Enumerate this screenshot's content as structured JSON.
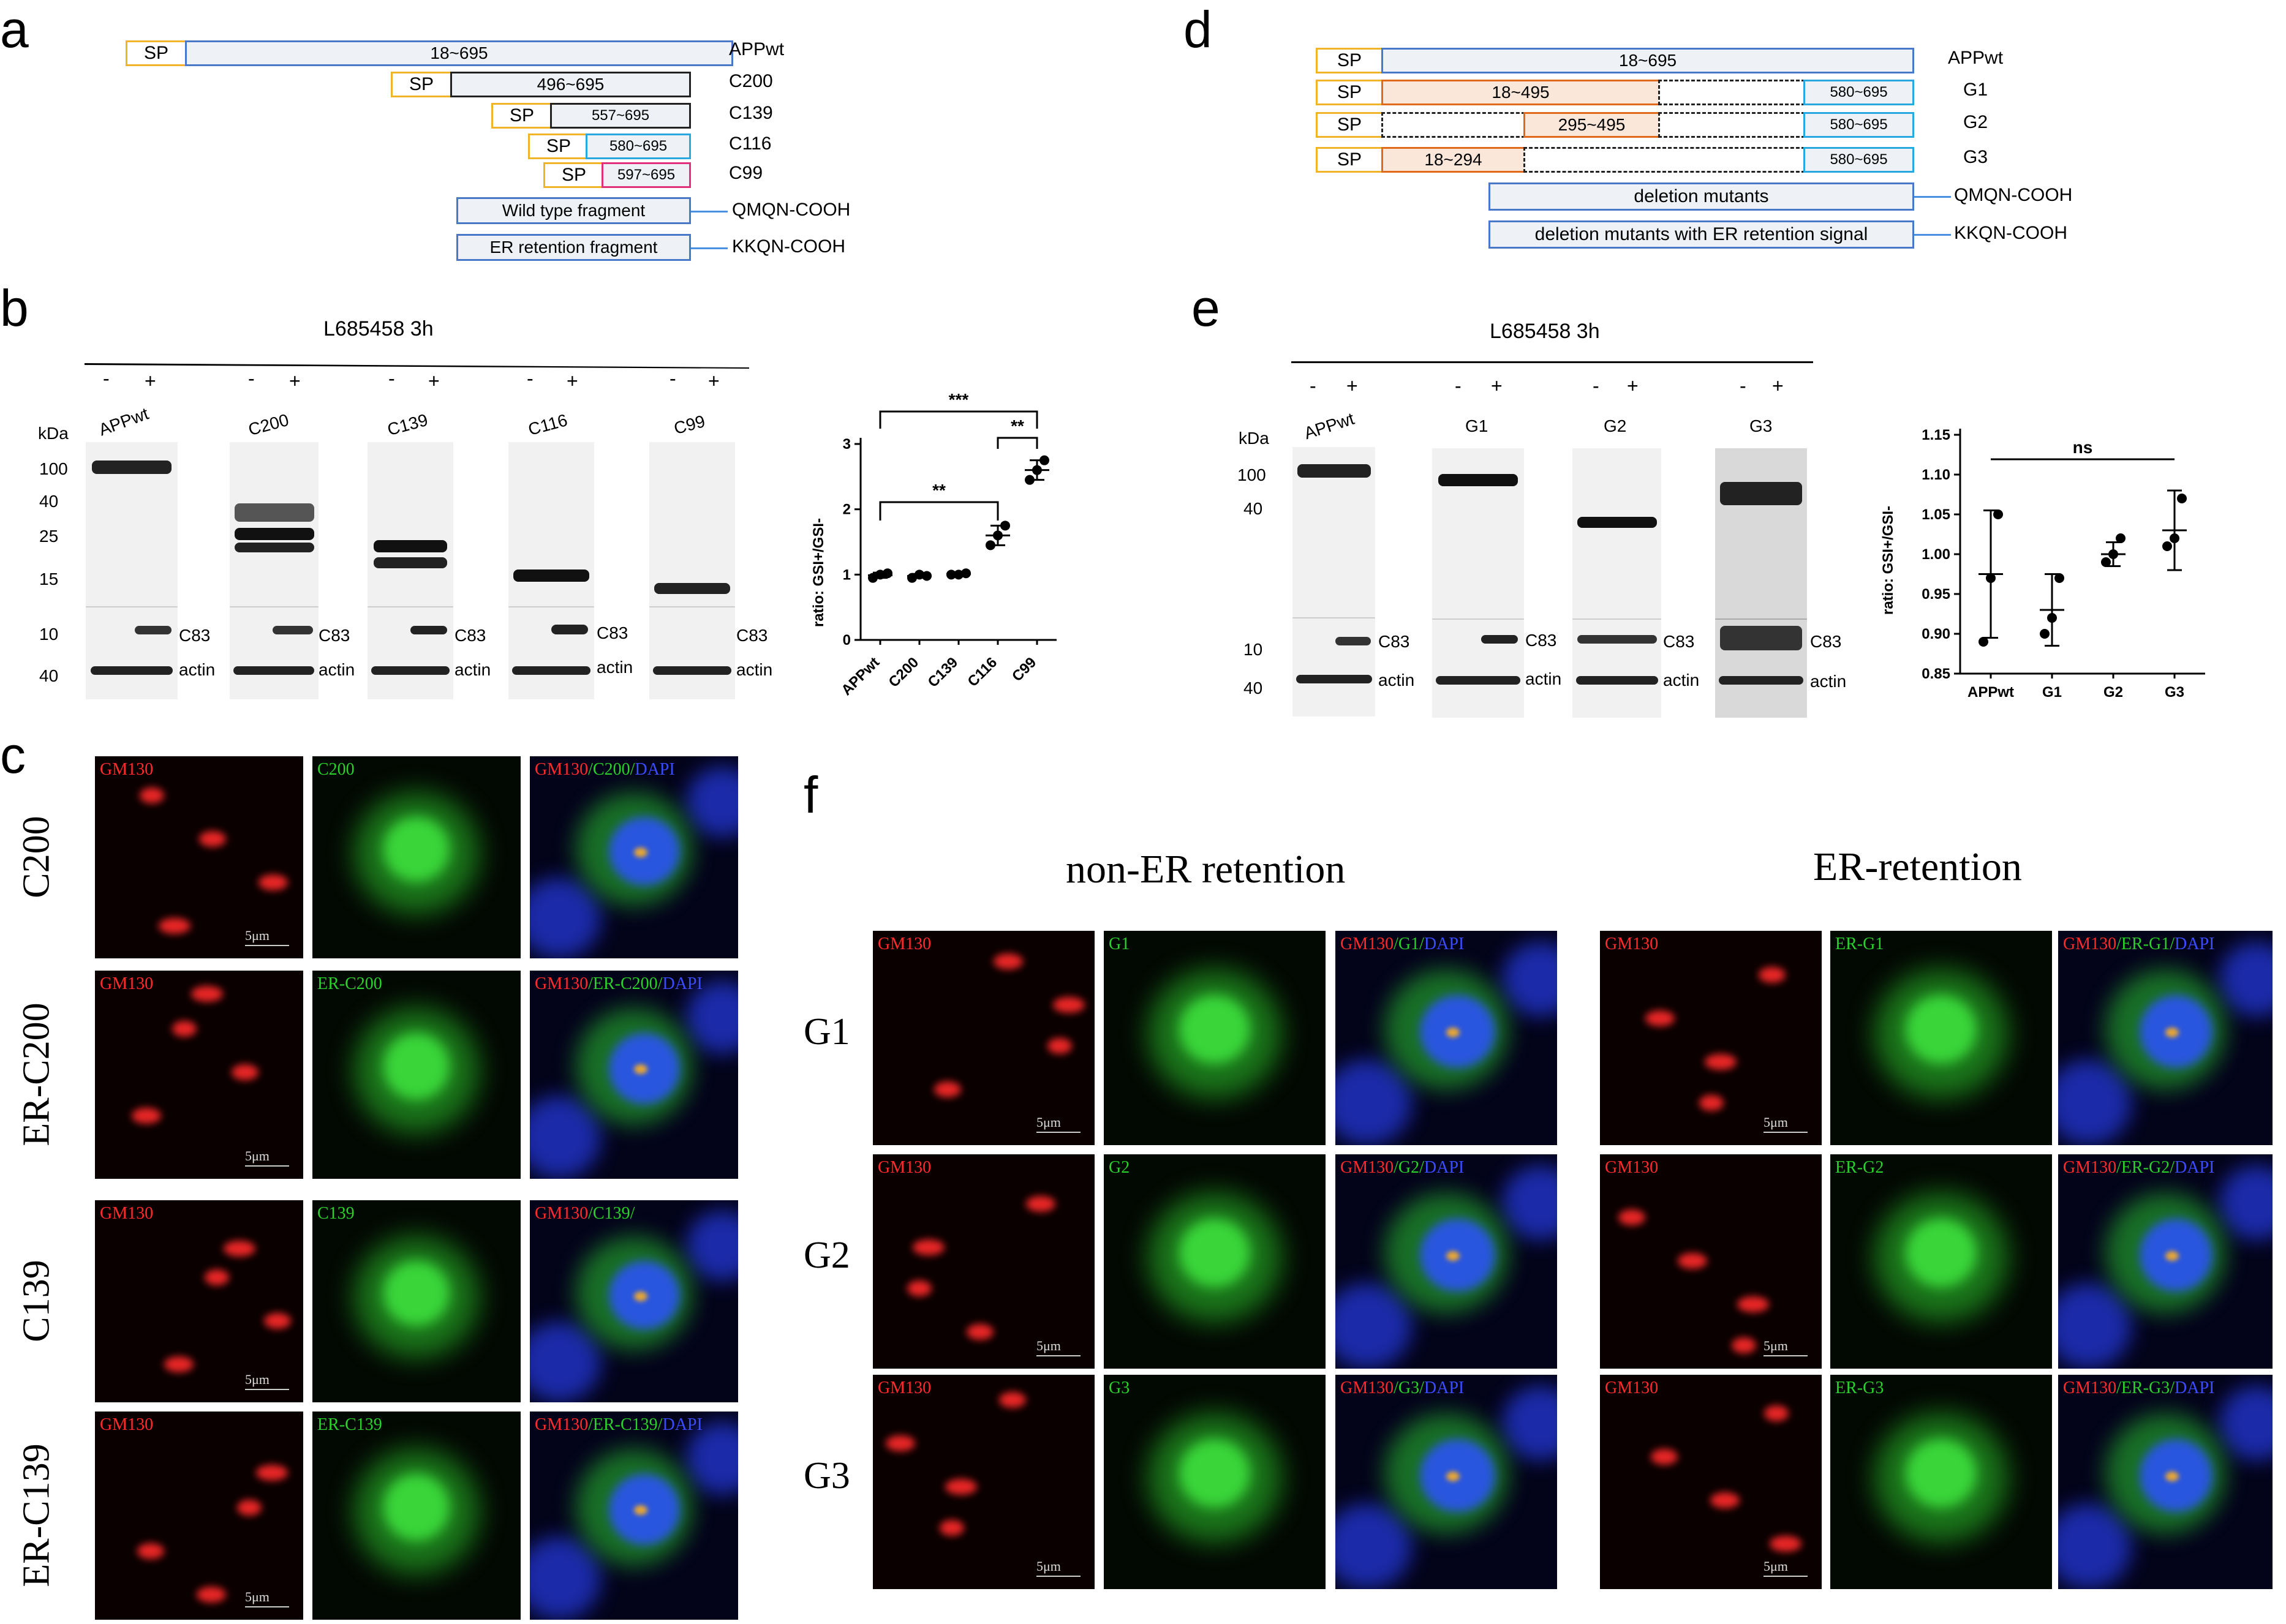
{
  "panel_letters": [
    "a",
    "b",
    "c",
    "d",
    "e",
    "f"
  ],
  "panel_a": {
    "sp": "SP",
    "constructs": [
      {
        "name": "APPwt",
        "range": "18~695"
      },
      {
        "name": "C200",
        "range": "496~695"
      },
      {
        "name": "C139",
        "range": "557~695"
      },
      {
        "name": "C116",
        "range": "580~695"
      },
      {
        "name": "C99",
        "range": "597~695"
      }
    ],
    "wt_fragment": "Wild type fragment",
    "er_fragment": "ER retention fragment",
    "wt_tail": "QMQN-COOH",
    "er_tail": "KKQN-COOH"
  },
  "panel_b": {
    "treatment": "L685458  3h",
    "kda": "kDa",
    "groups": [
      "APPwt",
      "C200",
      "C139",
      "C116",
      "C99"
    ],
    "minus": "-",
    "plus": "+",
    "markers": [
      "100",
      "40",
      "25",
      "15",
      "10",
      "40"
    ],
    "c83": "C83",
    "actin": "actin"
  },
  "panel_b_chart": {
    "chart_data": {
      "type": "scatter",
      "categories": [
        "APPwt",
        "C200",
        "C139",
        "C116",
        "C99"
      ],
      "points": [
        [
          0.95,
          1.0,
          1.02
        ],
        [
          0.95,
          1.0,
          0.98
        ],
        [
          1.0,
          1.0,
          1.02
        ],
        [
          1.45,
          1.6,
          1.75
        ],
        [
          2.45,
          2.6,
          2.75
        ]
      ],
      "means": [
        0.99,
        0.98,
        1.01,
        1.6,
        2.6
      ],
      "sd": [
        0.04,
        0.03,
        0.02,
        0.15,
        0.15
      ],
      "ylabel": "ratio: GSI+/GSI-",
      "ylim": [
        0,
        3
      ],
      "yticks": [
        "0",
        "1",
        "2",
        "3"
      ],
      "annotations": [
        {
          "from": "APPwt",
          "to": "C99",
          "text": "***"
        },
        {
          "from": "C116",
          "to": "C99",
          "text": "**"
        },
        {
          "from": "APPwt",
          "to": "C116",
          "text": "**"
        }
      ]
    }
  },
  "panel_c": {
    "rows": [
      {
        "label": "C200",
        "tiles": [
          "GM130",
          "C200"
        ],
        "merge": [
          "GM130",
          "/C200/",
          "DAPI"
        ]
      },
      {
        "label": "ER-C200",
        "tiles": [
          "GM130",
          "ER-C200"
        ],
        "merge": [
          "GM130",
          "/ER-C200/",
          "DAPI"
        ]
      },
      {
        "label": "C139",
        "tiles": [
          "GM130",
          "C139"
        ],
        "merge": [
          "GM130",
          "/C139/",
          ""
        ]
      },
      {
        "label": "ER-C139",
        "tiles": [
          "GM130",
          "ER-C139"
        ],
        "merge": [
          "GM130",
          "/ER-C139/",
          "DAPI"
        ]
      }
    ],
    "scale": "5μm"
  },
  "panel_d": {
    "sp": "SP",
    "constructs": [
      {
        "name": "APPwt",
        "segments": [
          "18~695"
        ]
      },
      {
        "name": "G1",
        "segments": [
          "18~495",
          "",
          "580~695"
        ]
      },
      {
        "name": "G2",
        "segments": [
          "",
          "295~495",
          "",
          "580~695"
        ]
      },
      {
        "name": "G3",
        "segments": [
          "18~294",
          "",
          "580~695"
        ]
      }
    ],
    "del_label": "deletion mutants",
    "er_label": "deletion mutants with ER retention signal",
    "wt_tail": "QMQN-COOH",
    "er_tail": "KKQN-COOH"
  },
  "panel_e": {
    "treatment": "L685458  3h",
    "kda": "kDa",
    "groups": [
      "APPwt",
      "G1",
      "G2",
      "G3"
    ],
    "minus": "-",
    "plus": "+",
    "markers": [
      "100",
      "40",
      "10",
      "40"
    ],
    "c83": "C83",
    "actin": "actin"
  },
  "panel_e_chart": {
    "chart_data": {
      "type": "scatter",
      "categories": [
        "APPwt",
        "G1",
        "G2",
        "G3"
      ],
      "points": [
        [
          0.89,
          0.97,
          1.05
        ],
        [
          0.9,
          0.92,
          0.97
        ],
        [
          0.99,
          1.0,
          1.02
        ],
        [
          1.01,
          1.02,
          1.07
        ]
      ],
      "means": [
        0.975,
        0.93,
        1.0,
        1.03
      ],
      "sd": [
        0.08,
        0.045,
        0.015,
        0.05
      ],
      "ylabel": "ratio: GSI+/GSI-",
      "ylim": [
        0.85,
        1.15
      ],
      "yticks": [
        "0.85",
        "0.90",
        "0.95",
        "1.00",
        "1.05",
        "1.10",
        "1.15"
      ],
      "annotations": [
        {
          "from": "APPwt",
          "to": "G3",
          "text": "ns"
        }
      ]
    }
  },
  "panel_f": {
    "non_er_title": "non-ER retention",
    "er_title": "ER-retention",
    "rows": [
      "G1",
      "G2",
      "G3"
    ],
    "non_er": [
      {
        "tiles": [
          "GM130",
          "G1"
        ],
        "merge": [
          "GM130",
          "/G1/",
          "DAPI"
        ]
      },
      {
        "tiles": [
          "GM130",
          "G2"
        ],
        "merge": [
          "GM130",
          "/G2/",
          "DAPI"
        ]
      },
      {
        "tiles": [
          "GM130",
          "G3"
        ],
        "merge": [
          "GM130",
          "/G3/",
          "DAPI"
        ]
      }
    ],
    "er": [
      {
        "tiles": [
          "GM130",
          "ER-G1"
        ],
        "merge": [
          "GM130",
          "/ER-G1/",
          "DAPI"
        ]
      },
      {
        "tiles": [
          "GM130",
          "ER-G2"
        ],
        "merge": [
          "GM130",
          "/ER-G2/",
          "DAPI"
        ]
      },
      {
        "tiles": [
          "GM130",
          "ER-G3"
        ],
        "merge": [
          "GM130",
          "/ER-G3/",
          "DAPI"
        ]
      }
    ],
    "scale": "5μm"
  }
}
